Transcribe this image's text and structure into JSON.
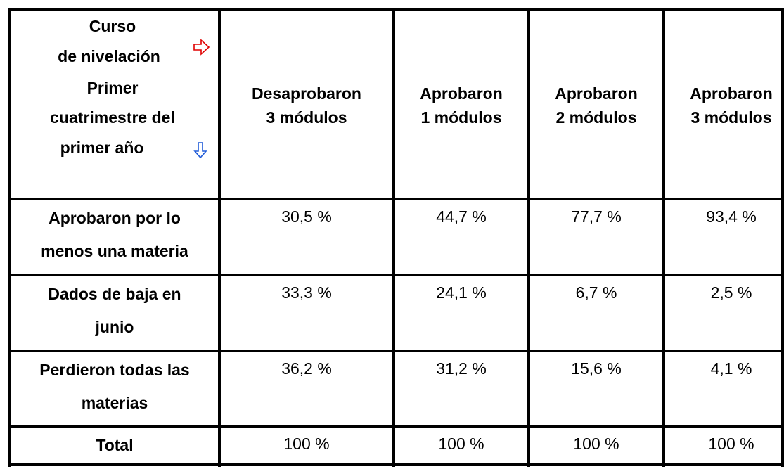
{
  "table": {
    "corner": {
      "top": [
        "Curso",
        "de nivelación"
      ],
      "bottom": [
        "Primer",
        "cuatrimestre del",
        "primer año"
      ]
    },
    "columns": [
      [
        "Desaprobaron",
        "3 módulos"
      ],
      [
        "Aprobaron",
        "1 módulos"
      ],
      [
        "Aprobaron",
        "2 módulos"
      ],
      [
        "Aprobaron",
        "3 módulos"
      ]
    ],
    "rows": [
      {
        "label": [
          "Aprobaron por lo",
          "menos una materia"
        ],
        "cells": [
          "30,5 %",
          "44,7 %",
          "77,7 %",
          "93,4 %"
        ]
      },
      {
        "label": [
          "Dados de baja en",
          "junio"
        ],
        "cells": [
          "33,3 %",
          "24,1 %",
          "6,7 %",
          "2,5 %"
        ]
      },
      {
        "label": [
          "Perdieron todas las",
          "materias"
        ],
        "cells": [
          "36,2 %",
          "31,2 %",
          "15,6 %",
          "4,1 %"
        ]
      },
      {
        "label": [
          "Total"
        ],
        "cells": [
          "100 %",
          "100 %",
          "100 %",
          "100 %"
        ]
      }
    ]
  }
}
